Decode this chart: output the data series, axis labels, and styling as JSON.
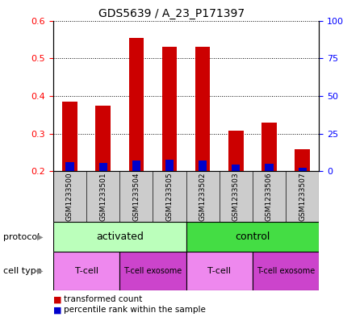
{
  "title": "GDS5639 / A_23_P171397",
  "samples": [
    "GSM1233500",
    "GSM1233501",
    "GSM1233504",
    "GSM1233505",
    "GSM1233502",
    "GSM1233503",
    "GSM1233506",
    "GSM1233507"
  ],
  "transformed_counts": [
    0.385,
    0.375,
    0.555,
    0.53,
    0.53,
    0.308,
    0.328,
    0.258
  ],
  "percentile_blue_tops": [
    0.225,
    0.222,
    0.228,
    0.23,
    0.228,
    0.218,
    0.22,
    0.21
  ],
  "ylim": [
    0.2,
    0.6
  ],
  "yticks": [
    0.2,
    0.3,
    0.4,
    0.5,
    0.6
  ],
  "y2ticks": [
    0,
    25,
    50,
    75,
    100
  ],
  "bar_color": "#cc0000",
  "blue_color": "#0000cc",
  "sample_label_bg": "#cccccc",
  "protocol_row": [
    {
      "label": "activated",
      "start": 0,
      "end": 4,
      "color": "#bbffbb"
    },
    {
      "label": "control",
      "start": 4,
      "end": 8,
      "color": "#44dd44"
    }
  ],
  "celltype_row": [
    {
      "label": "T-cell",
      "start": 0,
      "end": 2,
      "color": "#ee88ee"
    },
    {
      "label": "T-cell exosome",
      "start": 2,
      "end": 4,
      "color": "#cc44cc"
    },
    {
      "label": "T-cell",
      "start": 4,
      "end": 6,
      "color": "#ee88ee"
    },
    {
      "label": "T-cell exosome",
      "start": 6,
      "end": 8,
      "color": "#cc44cc"
    }
  ]
}
